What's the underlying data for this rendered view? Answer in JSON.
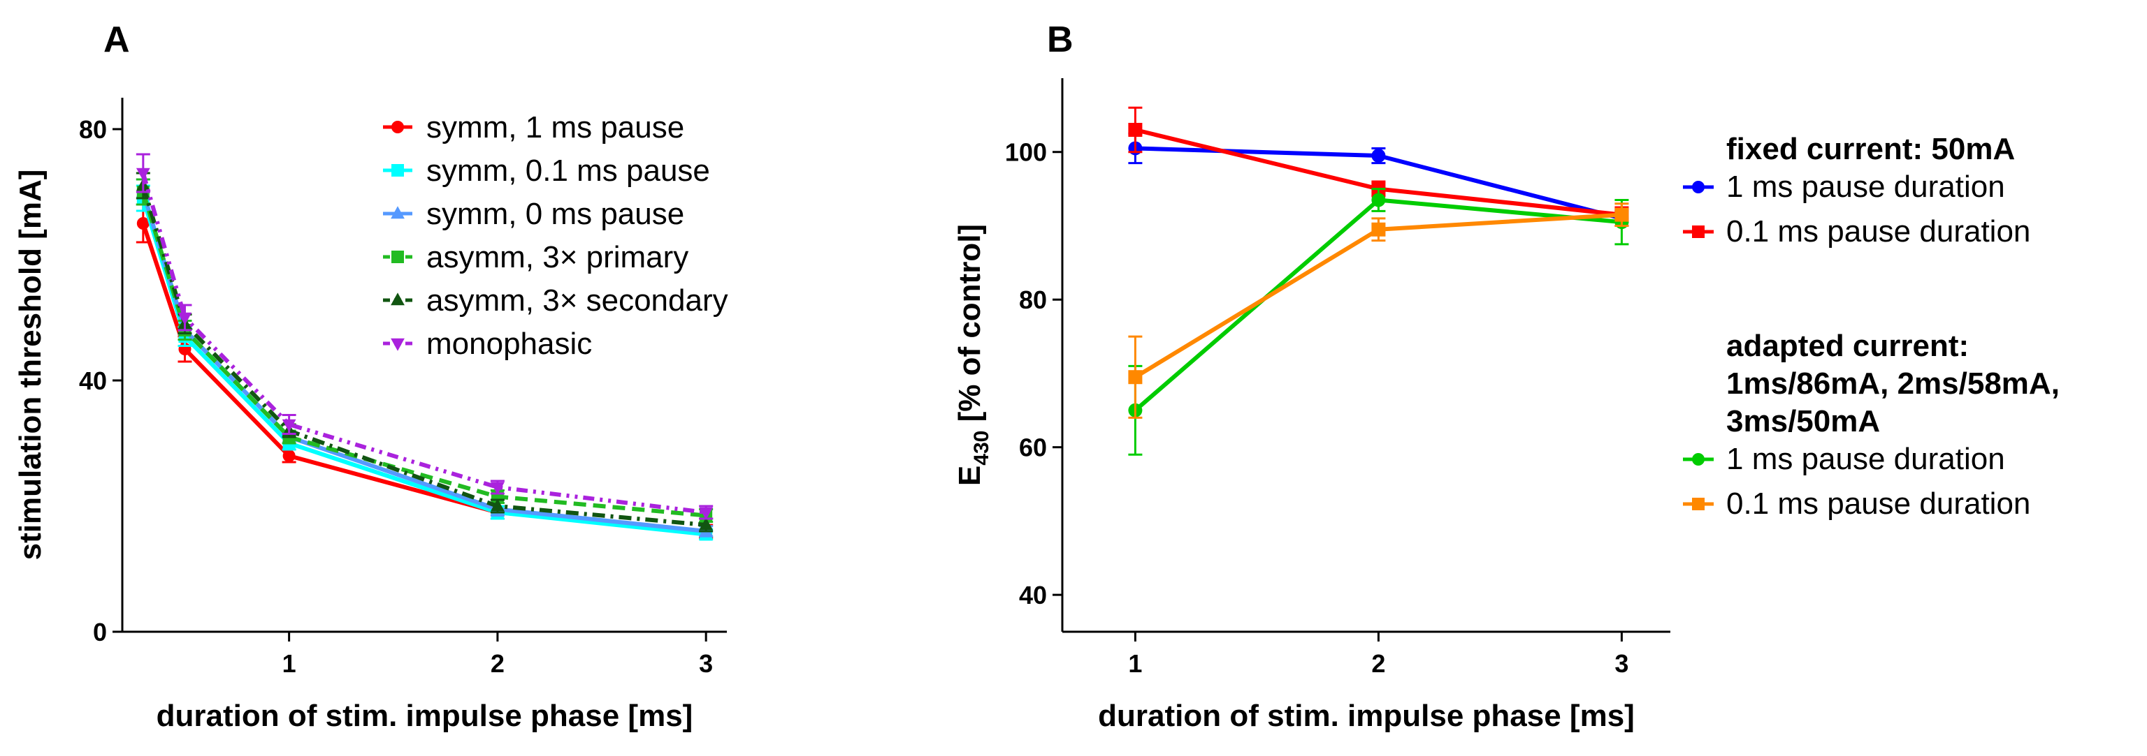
{
  "figure": {
    "panel_a_label": "A",
    "panel_b_label": "B"
  },
  "chart_data": [
    {
      "panel": "A",
      "type": "line",
      "xlabel": "duration of stim. impulse phase [ms]",
      "ylabel": "stimulation threshold [mA]",
      "xlim": [
        0.2,
        3.1
      ],
      "ylim": [
        0,
        85
      ],
      "xticks": [
        1,
        2,
        3
      ],
      "xtick_labels": [
        "1",
        "2",
        "3"
      ],
      "yticks": [
        0,
        40,
        80
      ],
      "ytick_labels": [
        "0",
        "40",
        "80"
      ],
      "x": [
        0.3,
        0.5,
        1,
        2,
        3
      ],
      "grid": false,
      "legend_position": "top-right",
      "series": [
        {
          "name": "symm, 1 ms pause",
          "color": "#ff0000",
          "marker": "circle",
          "dash": "solid",
          "values": [
            65,
            45,
            28,
            19,
            16
          ],
          "errors": [
            3,
            2,
            1,
            1,
            1
          ]
        },
        {
          "name": "symm, 0.1 ms pause",
          "color": "#00ffff",
          "marker": "square",
          "dash": "solid",
          "values": [
            69,
            47,
            30,
            19,
            15.5
          ],
          "errors": [
            2,
            1.5,
            1,
            1,
            0.8
          ]
        },
        {
          "name": "symm, 0 ms pause",
          "color": "#5599ff",
          "marker": "triangle-up",
          "dash": "solid",
          "values": [
            70,
            48,
            31,
            19.5,
            16
          ],
          "errors": [
            2,
            1.5,
            1,
            1,
            0.8
          ]
        },
        {
          "name": "asymm, 3× primary",
          "color": "#22bb22",
          "marker": "square",
          "dash": "dashed",
          "values": [
            70,
            48,
            31,
            21.5,
            18.5
          ],
          "errors": [
            2,
            1.5,
            1,
            1,
            1
          ]
        },
        {
          "name": "asymm, 3× secondary",
          "color": "#115511",
          "marker": "triangle-up",
          "dash": "dashdot",
          "values": [
            71,
            49,
            32,
            20,
            17
          ],
          "errors": [
            2,
            1.5,
            1,
            1,
            1
          ]
        },
        {
          "name": "monophasic",
          "color": "#aa22dd",
          "marker": "triangle-down",
          "dash": "dashdotdot",
          "values": [
            73,
            50,
            33,
            23,
            19
          ],
          "errors": [
            3,
            2,
            1.5,
            1,
            1
          ]
        }
      ]
    },
    {
      "panel": "B",
      "type": "line",
      "xlabel": "duration of stim. impulse phase [ms]",
      "ylabel_main": "E",
      "ylabel_sub": "430",
      "ylabel_rest": " [% of control]",
      "xlim": [
        0.7,
        3.2
      ],
      "ylim": [
        35,
        110
      ],
      "xticks": [
        1,
        2,
        3
      ],
      "xtick_labels": [
        "1",
        "2",
        "3"
      ],
      "yticks": [
        40,
        60,
        80,
        100
      ],
      "ytick_labels": [
        "40",
        "60",
        "80",
        "100"
      ],
      "x": [
        1,
        2,
        3
      ],
      "grid": false,
      "legend_position": "right",
      "legend_groups": [
        {
          "heading_lines": [
            "fixed current: 50mA"
          ],
          "series_indices": [
            0,
            1
          ]
        },
        {
          "heading_lines": [
            "adapted current:",
            "1ms/86mA, 2ms/58mA,",
            "3ms/50mA"
          ],
          "series_indices": [
            2,
            3
          ]
        }
      ],
      "series": [
        {
          "name": "1 ms pause duration",
          "color": "#0000ff",
          "marker": "circle",
          "values": [
            100.5,
            99.5,
            91
          ],
          "errors": [
            2,
            1,
            1
          ]
        },
        {
          "name": "0.1 ms pause duration",
          "color": "#ff0000",
          "marker": "square",
          "values": [
            103,
            95,
            91.5
          ],
          "errors": [
            3,
            1,
            1
          ]
        },
        {
          "name": "1 ms pause duration",
          "color": "#00cc00",
          "marker": "circle",
          "values": [
            65,
            93.5,
            90.5
          ],
          "errors": [
            6,
            1.5,
            3
          ]
        },
        {
          "name": "0.1 ms pause duration",
          "color": "#ff8800",
          "marker": "square",
          "values": [
            69.5,
            89.5,
            91.5
          ],
          "errors": [
            5.5,
            1.5,
            1.5
          ]
        }
      ]
    }
  ]
}
